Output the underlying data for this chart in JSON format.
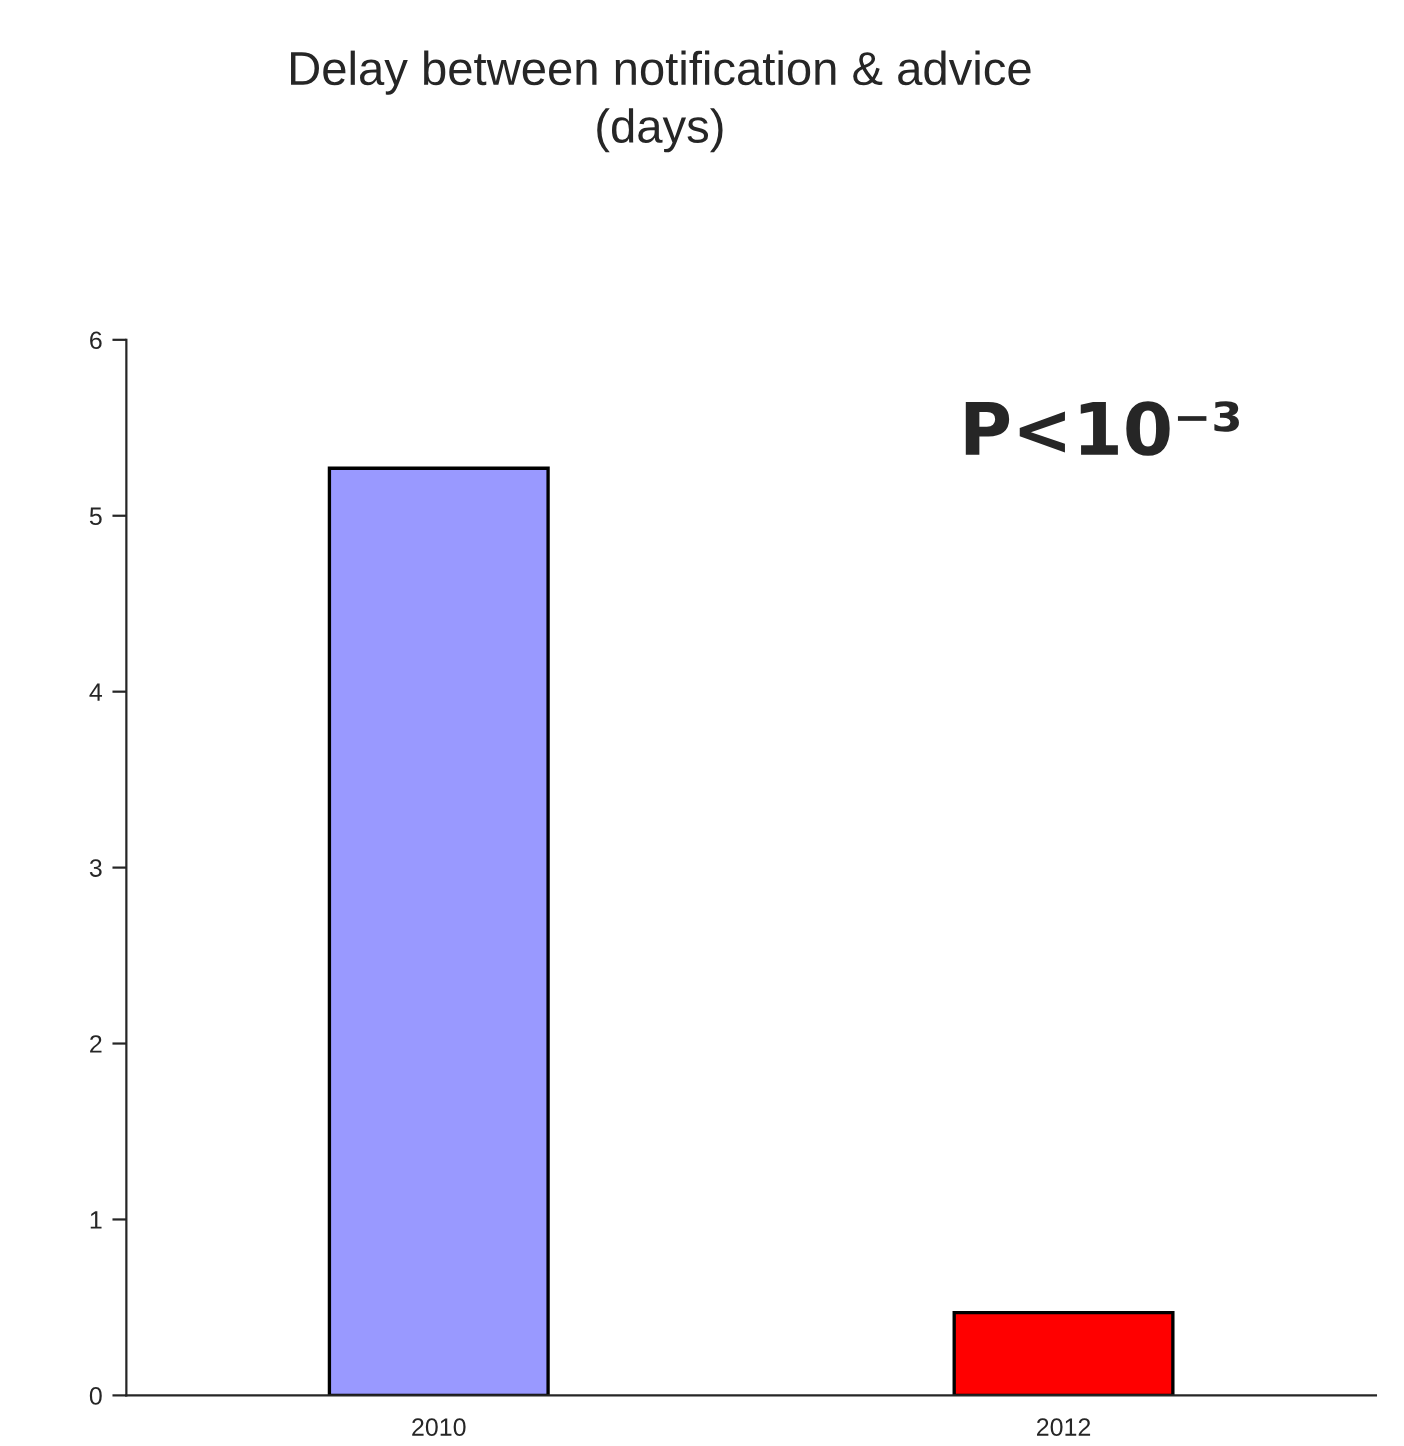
{
  "chart_data": {
    "type": "bar",
    "title": "Delay between notification & advice\n(days)",
    "categories": [
      "2010",
      "2012"
    ],
    "values": [
      5.27,
      0.47
    ],
    "colors": [
      "#9999ff",
      "#ff0000"
    ],
    "ylim": [
      0,
      6
    ],
    "yticks": [
      0,
      1,
      2,
      3,
      4,
      5,
      6
    ],
    "grid": false,
    "annotations": [
      {
        "text": "P<10⁻³"
      }
    ]
  }
}
